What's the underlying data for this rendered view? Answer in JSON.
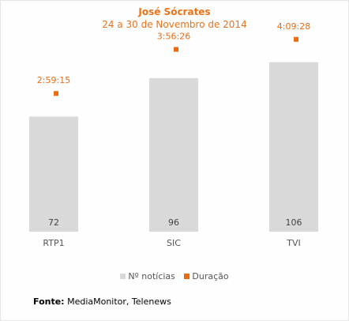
{
  "chart_data": {
    "type": "bar",
    "title": "José Sócrates",
    "subtitle": "24 a 30 de Novembro de 2014",
    "categories": [
      "RTP1",
      "SIC",
      "TVI"
    ],
    "series": [
      {
        "name": "Nº notícias",
        "type": "bar",
        "values": [
          72,
          96,
          106
        ],
        "color": "#d9d9d9"
      },
      {
        "name": "Duração",
        "type": "scatter",
        "values": [
          "2:59:15",
          "3:56:26",
          "4:09:28"
        ],
        "seconds": [
          10755,
          14186,
          14968
        ],
        "color": "#ec6b10"
      }
    ],
    "xlabel": "",
    "ylabel": "",
    "bar_ylim": [
      0,
      135
    ],
    "duration_ylim_seconds": [
      0,
      16800
    ],
    "grid": false,
    "legend_position": "bottom"
  },
  "source": {
    "label": "Fonte:",
    "text": " MediaMonitor, Telenews"
  },
  "colors": {
    "title": "#e8731c",
    "bar": "#d9d9d9",
    "marker": "#ec6b10",
    "axis_text": "#555555"
  }
}
